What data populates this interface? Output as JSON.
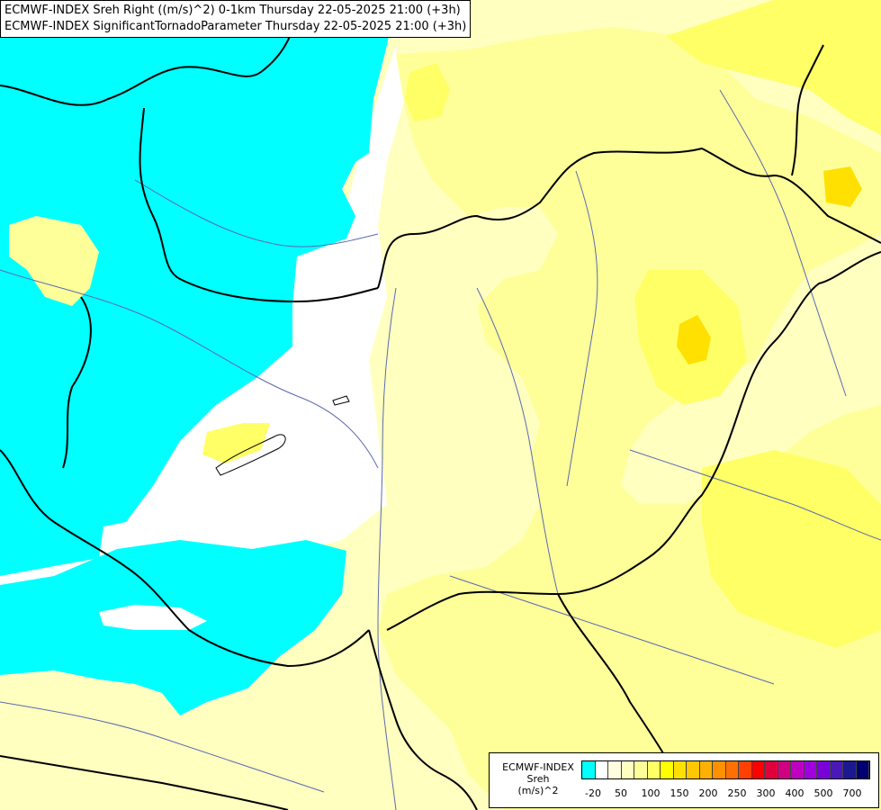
{
  "title": {
    "line1": "ECMWF-INDEX Sreh Right ((m/s)^2) 0-1km Thursday 22-05-2025 21:00 (+3h)",
    "line2": "ECMWF-INDEX SignificantTornadoParameter Thursday 22-05-2025 21:00 (+3h)"
  },
  "legend": {
    "label_line1": "ECMWF-INDEX",
    "label_line2": "Sreh",
    "label_line3": "(m/s)^2",
    "colors": [
      "#00ffff",
      "#ffffff",
      "#ffffe0",
      "#ffffc0",
      "#ffff9a",
      "#ffff66",
      "#ffff00",
      "#ffe000",
      "#ffc800",
      "#ffb000",
      "#ff9000",
      "#ff7000",
      "#ff4000",
      "#ff0000",
      "#e0003c",
      "#d00080",
      "#c000c0",
      "#a000e0",
      "#7a00d8",
      "#4a18b8",
      "#1c1890",
      "#000070"
    ],
    "ticks": [
      "-20",
      "50",
      "100",
      "150",
      "200",
      "250",
      "300",
      "400",
      "500",
      "700"
    ]
  },
  "map_colors": {
    "cyan": "#00ffff",
    "white": "#ffffff",
    "pale_yellow": "#ffffc0",
    "light_yellow": "#ffff9a",
    "yellow": "#ffff66",
    "bright_yellow": "#ffff00",
    "gold": "#ffe000",
    "border": "#000000",
    "river": "#5a6ab0"
  }
}
